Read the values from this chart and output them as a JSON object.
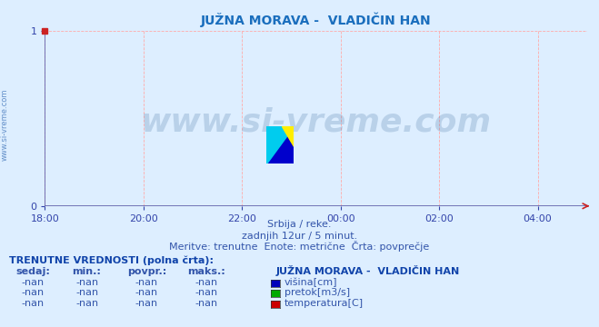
{
  "title": "JUŽNA MORAVA -  VLADIČIN HAN",
  "title_color": "#1a6ebd",
  "title_fontsize": 10,
  "plot_bg_color": "#ddeeff",
  "fig_bg_color": "#ddeeff",
  "x_ticks_labels": [
    "18:00",
    "20:00",
    "22:00",
    "00:00",
    "02:00",
    "04:00"
  ],
  "x_ticks_values": [
    0,
    2,
    4,
    6,
    8,
    10
  ],
  "xlim": [
    0,
    11.0
  ],
  "ylim": [
    0,
    1
  ],
  "yticks": [
    0,
    1
  ],
  "grid_color": "#ffaaaa",
  "axis_color": "#6060aa",
  "tick_color": "#3344aa",
  "tick_fontsize": 8,
  "watermark_text": "www.si-vreme.com",
  "watermark_color": "#1a4f8a",
  "watermark_alpha": 0.18,
  "watermark_fontsize": 26,
  "side_text": "www.si-vreme.com",
  "side_text_color": "#4477bb",
  "side_text_fontsize": 6,
  "subtitle1": "Srbija / reke.",
  "subtitle2": "zadnjih 12ur / 5 minut.",
  "subtitle3": "Meritve: trenutne  Enote: metrične  Črta: povprečje",
  "subtitle_color": "#3355aa",
  "subtitle_fontsize": 8,
  "table_header": "TRENUTNE VREDNOSTI (polna črta):",
  "table_header_color": "#1144aa",
  "table_header_fontsize": 8,
  "col_headers": [
    "sedaj:",
    "min.:",
    "povpr.:",
    "maks.:"
  ],
  "col_header_color": "#3355aa",
  "col_header_fontsize": 8,
  "station_label": "JUŽNA MORAVA -  VLADIČIN HAN",
  "station_label_color": "#1144aa",
  "station_label_fontsize": 8,
  "rows": [
    {
      "values": [
        "-nan",
        "-nan",
        "-nan",
        "-nan"
      ],
      "legend_color": "#0000bb",
      "legend_label": "višina[cm]"
    },
    {
      "values": [
        "-nan",
        "-nan",
        "-nan",
        "-nan"
      ],
      "legend_color": "#00aa00",
      "legend_label": "pretok[m3/s]"
    },
    {
      "values": [
        "-nan",
        "-nan",
        "-nan",
        "-nan"
      ],
      "legend_color": "#cc0000",
      "legend_label": "temperatura[C]"
    }
  ],
  "row_fontsize": 8,
  "row_color": "#3355aa"
}
